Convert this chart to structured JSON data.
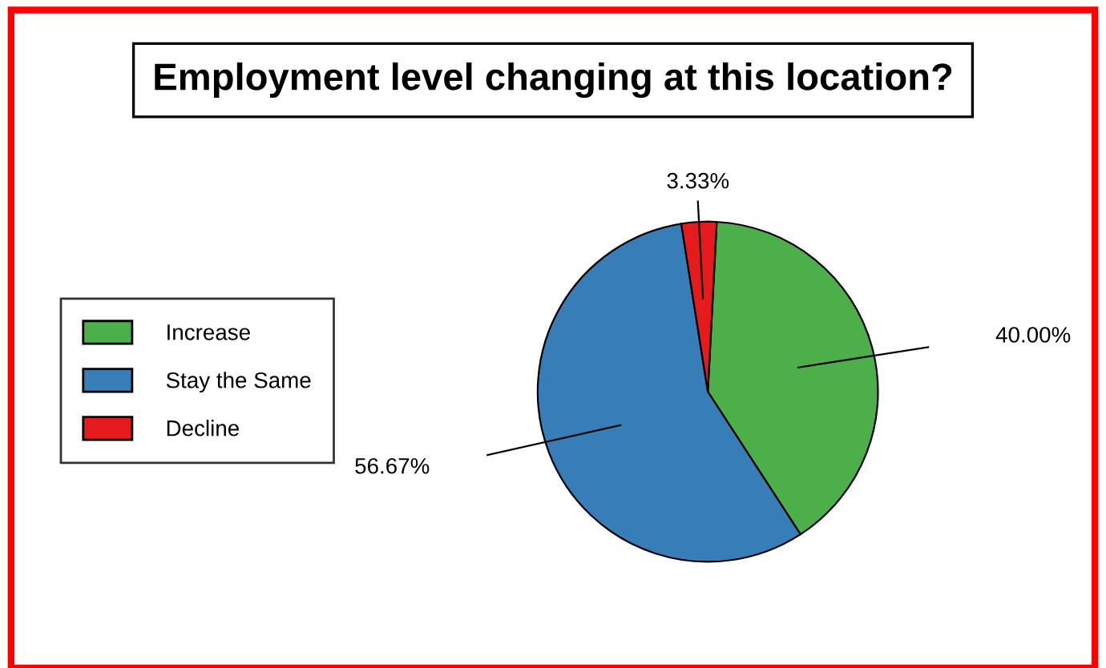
{
  "chart_data": {
    "type": "pie",
    "title": "Employment level changing at this location?",
    "categories": [
      "Increase",
      "Stay the Same",
      "Decline"
    ],
    "values": [
      40.0,
      56.67,
      3.33
    ],
    "colors": [
      "#4daf4a",
      "#377eb8",
      "#e41a1c"
    ],
    "value_labels": [
      "40.00%",
      "56.67%",
      "3.33%"
    ],
    "legend": "left"
  }
}
